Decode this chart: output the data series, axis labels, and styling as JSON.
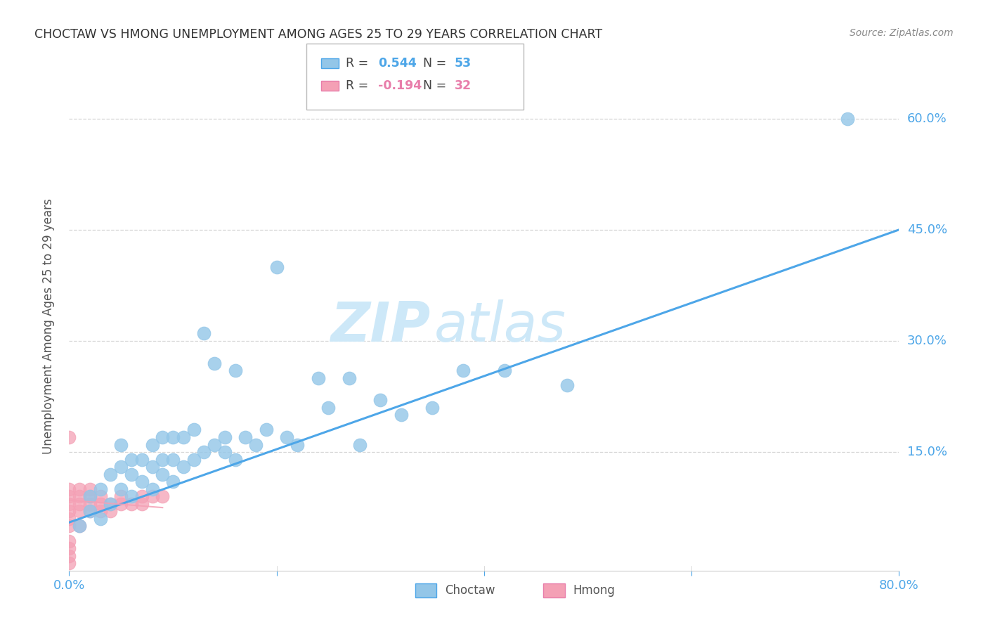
{
  "title": "CHOCTAW VS HMONG UNEMPLOYMENT AMONG AGES 25 TO 29 YEARS CORRELATION CHART",
  "source": "Source: ZipAtlas.com",
  "ylabel": "Unemployment Among Ages 25 to 29 years",
  "xlim": [
    0.0,
    0.8
  ],
  "ylim": [
    -0.01,
    0.65
  ],
  "xtick_positions": [
    0.0,
    0.8
  ],
  "xtick_labels": [
    "0.0%",
    "80.0%"
  ],
  "ytick_positions": [
    0.0,
    0.15,
    0.3,
    0.45,
    0.6
  ],
  "ytick_labels": [
    "0.0%",
    "15.0%",
    "30.0%",
    "45.0%",
    "60.0%"
  ],
  "choctaw_color": "#93c6e8",
  "hmong_color": "#f4a0b5",
  "regression_color": "#4da6e8",
  "hmong_regression_color": "#f4a0b5",
  "r_choctaw": "0.544",
  "n_choctaw": "53",
  "r_hmong": "-0.194",
  "n_hmong": "32",
  "choctaw_x": [
    0.01,
    0.02,
    0.02,
    0.03,
    0.03,
    0.04,
    0.04,
    0.05,
    0.05,
    0.05,
    0.06,
    0.06,
    0.06,
    0.07,
    0.07,
    0.08,
    0.08,
    0.08,
    0.09,
    0.09,
    0.09,
    0.1,
    0.1,
    0.1,
    0.11,
    0.11,
    0.12,
    0.12,
    0.13,
    0.13,
    0.14,
    0.14,
    0.15,
    0.15,
    0.16,
    0.16,
    0.17,
    0.18,
    0.19,
    0.2,
    0.21,
    0.22,
    0.24,
    0.25,
    0.27,
    0.28,
    0.3,
    0.32,
    0.35,
    0.38,
    0.42,
    0.48,
    0.75
  ],
  "choctaw_y": [
    0.05,
    0.07,
    0.09,
    0.06,
    0.1,
    0.08,
    0.12,
    0.1,
    0.13,
    0.16,
    0.09,
    0.12,
    0.14,
    0.11,
    0.14,
    0.1,
    0.13,
    0.16,
    0.12,
    0.14,
    0.17,
    0.11,
    0.14,
    0.17,
    0.13,
    0.17,
    0.14,
    0.18,
    0.15,
    0.31,
    0.16,
    0.27,
    0.15,
    0.17,
    0.14,
    0.26,
    0.17,
    0.16,
    0.18,
    0.4,
    0.17,
    0.16,
    0.25,
    0.21,
    0.25,
    0.16,
    0.22,
    0.2,
    0.21,
    0.26,
    0.26,
    0.24,
    0.6
  ],
  "hmong_x": [
    0.0,
    0.0,
    0.0,
    0.0,
    0.0,
    0.0,
    0.0,
    0.0,
    0.0,
    0.0,
    0.0,
    0.01,
    0.01,
    0.01,
    0.01,
    0.01,
    0.02,
    0.02,
    0.02,
    0.02,
    0.03,
    0.03,
    0.03,
    0.04,
    0.04,
    0.05,
    0.05,
    0.06,
    0.07,
    0.07,
    0.08,
    0.09
  ],
  "hmong_y": [
    0.0,
    0.01,
    0.02,
    0.03,
    0.05,
    0.06,
    0.07,
    0.08,
    0.09,
    0.1,
    0.17,
    0.05,
    0.07,
    0.08,
    0.09,
    0.1,
    0.07,
    0.08,
    0.09,
    0.1,
    0.07,
    0.08,
    0.09,
    0.07,
    0.08,
    0.08,
    0.09,
    0.08,
    0.08,
    0.09,
    0.09,
    0.09
  ],
  "regression_x_start": 0.0,
  "regression_x_end": 0.8,
  "regression_y_start": 0.055,
  "regression_y_end": 0.45,
  "background_color": "#ffffff",
  "grid_color": "#cccccc",
  "title_color": "#333333",
  "axis_label_color": "#555555",
  "tick_color": "#4da6e8",
  "watermark_zip": "ZIP",
  "watermark_atlas": "atlas",
  "watermark_color": "#cde8f8"
}
